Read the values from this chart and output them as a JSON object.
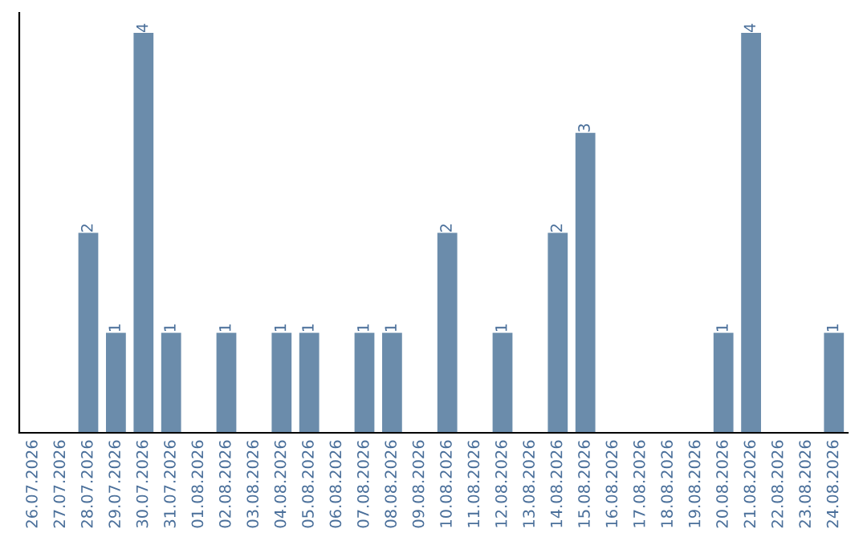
{
  "chart_data": {
    "type": "bar",
    "categories": [
      "26.07.2026",
      "27.07.2026",
      "28.07.2026",
      "29.07.2026",
      "30.07.2026",
      "31.07.2026",
      "01.08.2026",
      "02.08.2026",
      "03.08.2026",
      "04.08.2026",
      "05.08.2026",
      "06.08.2026",
      "07.08.2026",
      "08.08.2026",
      "09.08.2026",
      "10.08.2026",
      "11.08.2026",
      "12.08.2026",
      "13.08.2026",
      "14.08.2026",
      "15.08.2026",
      "16.08.2026",
      "17.08.2026",
      "18.08.2026",
      "19.08.2026",
      "20.08.2026",
      "21.08.2026",
      "22.08.2026",
      "23.08.2026",
      "24.08.2026"
    ],
    "values": [
      0,
      0,
      2,
      1,
      4,
      1,
      0,
      1,
      0,
      1,
      1,
      0,
      1,
      1,
      0,
      2,
      0,
      1,
      0,
      2,
      3,
      0,
      0,
      0,
      0,
      1,
      4,
      0,
      0,
      1
    ],
    "value_labels": [
      null,
      null,
      "2",
      "1",
      "4",
      "1",
      null,
      "1",
      null,
      "1",
      "1",
      null,
      "1",
      "1",
      null,
      "2",
      null,
      "1",
      null,
      "2",
      "3",
      null,
      null,
      null,
      null,
      "1",
      "4",
      null,
      null,
      "1"
    ],
    "color": "#6b8cab",
    "ylim": [
      0,
      4.2
    ],
    "tick_labels": "x",
    "grid": false,
    "legend": false
  }
}
